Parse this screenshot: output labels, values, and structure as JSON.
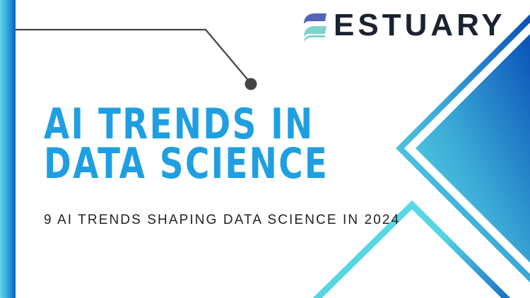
{
  "brand": {
    "name": "ESTUARY"
  },
  "headline": {
    "line1": "AI TRENDS IN",
    "line2": "DATA SCIENCE"
  },
  "subtitle": "9 AI TRENDS SHAPING DATA SCIENCE IN 2024",
  "colors": {
    "title": "#1f9fe2",
    "brand_text": "#1b2230",
    "gradient_light": "#5fdbe6",
    "gradient_dark": "#0b5fc0",
    "connector": "#444444",
    "logo_top": "#5563b8",
    "logo_bottom": "#7fd3cf"
  }
}
